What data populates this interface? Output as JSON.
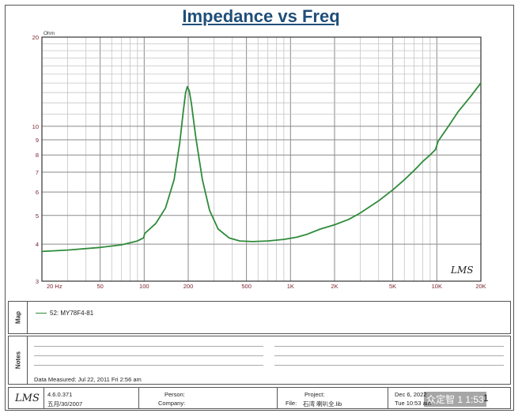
{
  "chart_data": {
    "type": "line",
    "title": "Impedance vs Freq",
    "ylabel": "Ohm",
    "x_scale": "log",
    "y_scale": "log",
    "xlim": [
      20,
      20000
    ],
    "ylim": [
      3,
      20
    ],
    "x_ticks": [
      {
        "v": 20,
        "label": "20  Hz"
      },
      {
        "v": 50,
        "label": "50"
      },
      {
        "v": 100,
        "label": "100"
      },
      {
        "v": 200,
        "label": "200"
      },
      {
        "v": 500,
        "label": "500"
      },
      {
        "v": 1000,
        "label": "1K"
      },
      {
        "v": 2000,
        "label": "2K"
      },
      {
        "v": 5000,
        "label": "5K"
      },
      {
        "v": 10000,
        "label": "10K"
      },
      {
        "v": 20000,
        "label": "20K"
      }
    ],
    "y_ticks": [
      {
        "v": 3,
        "label": "3"
      },
      {
        "v": 4,
        "label": "4"
      },
      {
        "v": 5,
        "label": "5"
      },
      {
        "v": 6,
        "label": "6"
      },
      {
        "v": 7,
        "label": "7"
      },
      {
        "v": 8,
        "label": "8"
      },
      {
        "v": 9,
        "label": "9"
      },
      {
        "v": 10,
        "label": "10"
      },
      {
        "v": 20,
        "label": "20"
      }
    ],
    "grid": true,
    "series": [
      {
        "name": "52: MY78F4-81",
        "color": "#2e8b3a",
        "points": [
          [
            20,
            3.78
          ],
          [
            30,
            3.82
          ],
          [
            50,
            3.9
          ],
          [
            70,
            3.98
          ],
          [
            90,
            4.1
          ],
          [
            99,
            4.2
          ],
          [
            101,
            4.35
          ],
          [
            120,
            4.7
          ],
          [
            140,
            5.3
          ],
          [
            160,
            6.6
          ],
          [
            175,
            8.8
          ],
          [
            185,
            11.2
          ],
          [
            192,
            13.0
          ],
          [
            197,
            13.6
          ],
          [
            203,
            13.2
          ],
          [
            210,
            12.0
          ],
          [
            225,
            9.2
          ],
          [
            250,
            6.6
          ],
          [
            280,
            5.2
          ],
          [
            320,
            4.5
          ],
          [
            380,
            4.2
          ],
          [
            450,
            4.1
          ],
          [
            550,
            4.08
          ],
          [
            700,
            4.1
          ],
          [
            900,
            4.15
          ],
          [
            1100,
            4.22
          ],
          [
            1300,
            4.32
          ],
          [
            1600,
            4.5
          ],
          [
            2000,
            4.65
          ],
          [
            2500,
            4.85
          ],
          [
            3000,
            5.1
          ],
          [
            4000,
            5.6
          ],
          [
            5000,
            6.1
          ],
          [
            6000,
            6.6
          ],
          [
            7000,
            7.1
          ],
          [
            8000,
            7.6
          ],
          [
            9000,
            8.0
          ],
          [
            9800,
            8.35
          ],
          [
            10200,
            8.9
          ],
          [
            12000,
            10.0
          ],
          [
            14000,
            11.2
          ],
          [
            17000,
            12.6
          ],
          [
            20000,
            14.0
          ]
        ]
      }
    ]
  },
  "map_panel": {
    "label": "Map",
    "legend_text": "52: MY78F4-81"
  },
  "notes_panel": {
    "label": "Notes",
    "date_measured": "Data Measured: Jul 22, 2011  Fri  2:56 am"
  },
  "footer": {
    "logo": "LMS",
    "version": "4.6.0.371",
    "version_date": "五月/30/2007",
    "person_label": "Person:",
    "company_label": "Company:",
    "project_label": "Project:",
    "file_label": "File:",
    "file_value": "石湾   喇叭全.lib",
    "date1": "Dec  6, 2022",
    "date2": "Tue 10:53 am",
    "page_number": "1"
  },
  "chart_logo": "LMS",
  "watermark": "众定智 1 1:53"
}
